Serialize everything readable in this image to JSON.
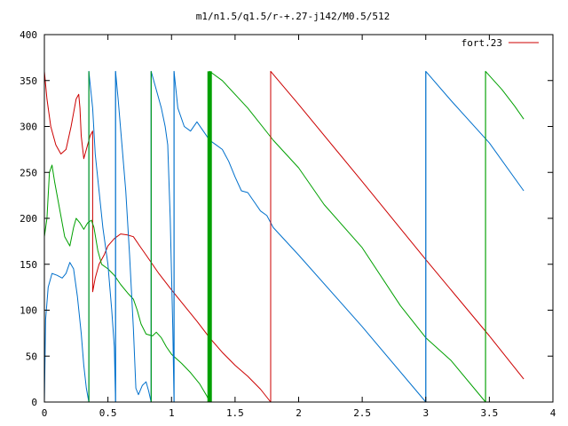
{
  "chart_data": {
    "type": "line",
    "title": "m1/n1.5/q1.5/r-+.27-j142/M0.5/512",
    "xlabel": "",
    "ylabel": "",
    "xlim": [
      0,
      4
    ],
    "ylim": [
      0,
      400
    ],
    "x_ticks": [
      0,
      0.5,
      1,
      1.5,
      2,
      2.5,
      3,
      3.5,
      4
    ],
    "x_tick_labels": [
      "0",
      "0.5",
      "1",
      "1.5",
      "2",
      "2.5",
      "3",
      "3.5",
      "4"
    ],
    "y_ticks": [
      0,
      50,
      100,
      150,
      200,
      250,
      300,
      350,
      400
    ],
    "y_tick_labels": [
      "0",
      "50",
      "100",
      "150",
      "200",
      "250",
      "300",
      "350",
      "400"
    ],
    "grid": false,
    "legend_position": "top-right",
    "legend": [
      {
        "label": "fort.23",
        "color": "#cc0000"
      }
    ],
    "series": [
      {
        "color": "#cc0000",
        "points": [
          [
            0.0,
            0
          ],
          [
            0.0,
            360
          ],
          [
            0.02,
            330
          ],
          [
            0.05,
            300
          ],
          [
            0.09,
            280
          ],
          [
            0.13,
            270
          ],
          [
            0.17,
            275
          ],
          [
            0.21,
            300
          ],
          [
            0.25,
            330
          ],
          [
            0.27,
            335
          ],
          [
            0.28,
            320
          ],
          [
            0.29,
            290
          ],
          [
            0.31,
            265
          ],
          [
            0.33,
            275
          ],
          [
            0.36,
            290
          ],
          [
            0.38,
            295
          ],
          [
            0.38,
            120
          ],
          [
            0.4,
            135
          ],
          [
            0.43,
            150
          ],
          [
            0.47,
            160
          ],
          [
            0.5,
            170
          ],
          [
            0.55,
            178
          ],
          [
            0.6,
            183
          ],
          [
            0.65,
            182
          ],
          [
            0.7,
            180
          ],
          [
            0.75,
            170
          ],
          [
            0.8,
            160
          ],
          [
            0.9,
            140
          ],
          [
            1.0,
            122
          ],
          [
            1.1,
            105
          ],
          [
            1.2,
            88
          ],
          [
            1.3,
            70
          ],
          [
            1.4,
            54
          ],
          [
            1.5,
            40
          ],
          [
            1.6,
            28
          ],
          [
            1.7,
            14
          ],
          [
            1.78,
            0
          ],
          [
            1.78,
            360
          ],
          [
            2.0,
            324
          ],
          [
            2.5,
            240
          ],
          [
            3.0,
            155
          ],
          [
            3.5,
            72
          ],
          [
            3.77,
            25
          ]
        ]
      },
      {
        "color": "#00a000",
        "points": [
          [
            0.0,
            180
          ],
          [
            0.02,
            200
          ],
          [
            0.04,
            250
          ],
          [
            0.06,
            258
          ],
          [
            0.08,
            240
          ],
          [
            0.12,
            210
          ],
          [
            0.16,
            180
          ],
          [
            0.2,
            170
          ],
          [
            0.23,
            190
          ],
          [
            0.25,
            200
          ],
          [
            0.28,
            195
          ],
          [
            0.31,
            188
          ],
          [
            0.34,
            195
          ],
          [
            0.37,
            198
          ],
          [
            0.39,
            190
          ],
          [
            0.42,
            165
          ],
          [
            0.45,
            150
          ],
          [
            0.5,
            145
          ],
          [
            0.55,
            138
          ],
          [
            0.6,
            128
          ],
          [
            0.66,
            118
          ],
          [
            0.7,
            112
          ],
          [
            0.73,
            100
          ],
          [
            0.76,
            85
          ],
          [
            0.8,
            74
          ],
          [
            0.85,
            72
          ],
          [
            0.88,
            76
          ],
          [
            0.92,
            70
          ],
          [
            0.96,
            60
          ],
          [
            1.0,
            52
          ],
          [
            1.08,
            42
          ],
          [
            1.15,
            32
          ],
          [
            1.22,
            20
          ],
          [
            1.28,
            6
          ],
          [
            1.3,
            0
          ],
          [
            1.3,
            360
          ],
          [
            1.4,
            350
          ],
          [
            1.6,
            320
          ],
          [
            1.8,
            285
          ],
          [
            2.0,
            255
          ],
          [
            2.2,
            215
          ],
          [
            2.5,
            168
          ],
          [
            2.8,
            105
          ],
          [
            3.0,
            70
          ],
          [
            3.2,
            45
          ],
          [
            3.47,
            0
          ],
          [
            3.47,
            360
          ],
          [
            3.6,
            340
          ],
          [
            3.7,
            322
          ],
          [
            3.77,
            308
          ]
        ]
      },
      {
        "color": "#0070cc",
        "points": [
          [
            0.0,
            0
          ],
          [
            0.01,
            90
          ],
          [
            0.03,
            125
          ],
          [
            0.06,
            140
          ],
          [
            0.1,
            138
          ],
          [
            0.14,
            135
          ],
          [
            0.17,
            140
          ],
          [
            0.2,
            152
          ],
          [
            0.23,
            145
          ],
          [
            0.26,
            115
          ],
          [
            0.29,
            75
          ],
          [
            0.31,
            40
          ],
          [
            0.33,
            15
          ],
          [
            0.35,
            0
          ],
          [
            0.35,
            360
          ],
          [
            0.38,
            320
          ],
          [
            0.4,
            270
          ],
          [
            0.43,
            230
          ],
          [
            0.46,
            190
          ],
          [
            0.5,
            150
          ],
          [
            0.53,
            100
          ],
          [
            0.55,
            60
          ],
          [
            0.56,
            0
          ],
          [
            0.56,
            360
          ],
          [
            0.58,
            330
          ],
          [
            0.61,
            280
          ],
          [
            0.64,
            230
          ],
          [
            0.67,
            160
          ],
          [
            0.7,
            80
          ],
          [
            0.72,
            15
          ],
          [
            0.74,
            8
          ],
          [
            0.77,
            18
          ],
          [
            0.8,
            22
          ],
          [
            0.82,
            12
          ],
          [
            0.84,
            0
          ],
          [
            0.84,
            360
          ],
          [
            0.88,
            340
          ],
          [
            0.92,
            320
          ],
          [
            0.95,
            300
          ],
          [
            0.97,
            280
          ],
          [
            0.99,
            200
          ],
          [
            1.01,
            80
          ],
          [
            1.02,
            0
          ],
          [
            1.02,
            360
          ],
          [
            1.05,
            320
          ],
          [
            1.1,
            300
          ],
          [
            1.15,
            295
          ],
          [
            1.2,
            305
          ],
          [
            1.25,
            295
          ],
          [
            1.3,
            285
          ],
          [
            1.35,
            280
          ],
          [
            1.4,
            275
          ],
          [
            1.45,
            262
          ],
          [
            1.5,
            245
          ],
          [
            1.55,
            230
          ],
          [
            1.6,
            228
          ],
          [
            1.65,
            218
          ],
          [
            1.7,
            208
          ],
          [
            1.75,
            203
          ],
          [
            1.8,
            190
          ],
          [
            2.0,
            160
          ],
          [
            2.5,
            82
          ],
          [
            3.0,
            0
          ],
          [
            3.0,
            360
          ],
          [
            3.2,
            328
          ],
          [
            3.5,
            282
          ],
          [
            3.77,
            230
          ]
        ]
      }
    ],
    "vertical_lines": [
      {
        "color": "#0070cc",
        "x": 0.35,
        "y_from": 0,
        "y_to": 360
      },
      {
        "color": "#0070cc",
        "x": 0.56,
        "y_from": 0,
        "y_to": 360
      },
      {
        "color": "#0070cc",
        "x": 0.84,
        "y_from": 0,
        "y_to": 360
      },
      {
        "color": "#0070cc",
        "x": 1.02,
        "y_from": 0,
        "y_to": 360
      },
      {
        "color": "#0070cc",
        "x": 3.0,
        "y_from": 0,
        "y_to": 360
      },
      {
        "color": "#00a000",
        "x": 0.35,
        "y_from": 0,
        "y_to": 360
      },
      {
        "color": "#00a000",
        "x": 0.84,
        "y_from": 0,
        "y_to": 360
      },
      {
        "color": "#00a000",
        "x": 1.3,
        "y_from": 0,
        "y_to": 360,
        "bold": true
      },
      {
        "color": "#00a000",
        "x": 3.47,
        "y_from": 0,
        "y_to": 360
      },
      {
        "color": "#cc0000",
        "x": 1.78,
        "y_from": 0,
        "y_to": 360
      }
    ]
  }
}
